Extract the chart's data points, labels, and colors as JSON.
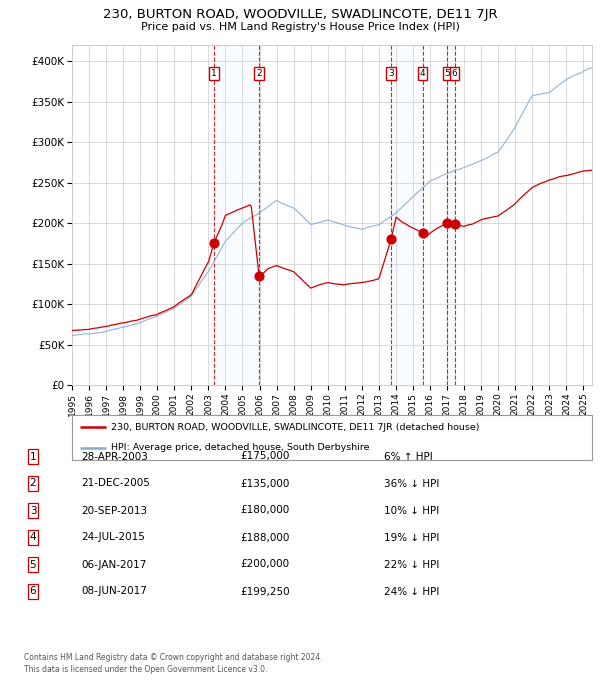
{
  "title": "230, BURTON ROAD, WOODVILLE, SWADLINCOTE, DE11 7JR",
  "subtitle": "Price paid vs. HM Land Registry's House Price Index (HPI)",
  "footer1": "Contains HM Land Registry data © Crown copyright and database right 2024.",
  "footer2": "This data is licensed under the Open Government Licence v3.0.",
  "legend_house": "230, BURTON ROAD, WOODVILLE, SWADLINCOTE, DE11 7JR (detached house)",
  "legend_hpi": "HPI: Average price, detached house, South Derbyshire",
  "transactions": [
    {
      "num": 1,
      "date": "28-APR-2003",
      "price": 175000,
      "pct": "6%",
      "dir": "↑",
      "year": 2003.32
    },
    {
      "num": 2,
      "date": "21-DEC-2005",
      "price": 135000,
      "pct": "36%",
      "dir": "↓",
      "year": 2005.97
    },
    {
      "num": 3,
      "date": "20-SEP-2013",
      "price": 180000,
      "pct": "10%",
      "dir": "↓",
      "year": 2013.72
    },
    {
      "num": 4,
      "date": "24-JUL-2015",
      "price": 188000,
      "pct": "19%",
      "dir": "↓",
      "year": 2015.56
    },
    {
      "num": 5,
      "date": "06-JAN-2017",
      "price": 200000,
      "pct": "22%",
      "dir": "↓",
      "year": 2017.02
    },
    {
      "num": 6,
      "date": "08-JUN-2017",
      "price": 199250,
      "pct": "24%",
      "dir": "↓",
      "year": 2017.44
    }
  ],
  "house_color": "#cc0000",
  "hpi_color": "#88aacc",
  "highlight_color": "#ddeeff",
  "grid_color": "#cccccc",
  "background_color": "#ffffff",
  "ylim": [
    0,
    420000
  ],
  "xlim_start": 1995.0,
  "xlim_end": 2025.5,
  "hpi_base": [
    [
      1995.0,
      60000
    ],
    [
      1996.0,
      63000
    ],
    [
      1997.0,
      67000
    ],
    [
      1998.0,
      72000
    ],
    [
      1999.0,
      77000
    ],
    [
      2000.0,
      85000
    ],
    [
      2001.0,
      95000
    ],
    [
      2002.0,
      110000
    ],
    [
      2003.0,
      140000
    ],
    [
      2004.0,
      178000
    ],
    [
      2005.0,
      200000
    ],
    [
      2006.0,
      212000
    ],
    [
      2007.0,
      228000
    ],
    [
      2008.0,
      218000
    ],
    [
      2009.0,
      198000
    ],
    [
      2010.0,
      204000
    ],
    [
      2011.0,
      197000
    ],
    [
      2012.0,
      193000
    ],
    [
      2013.0,
      198000
    ],
    [
      2014.0,
      212000
    ],
    [
      2015.0,
      232000
    ],
    [
      2016.0,
      252000
    ],
    [
      2017.0,
      262000
    ],
    [
      2018.0,
      268000
    ],
    [
      2019.0,
      277000
    ],
    [
      2020.0,
      288000
    ],
    [
      2021.0,
      318000
    ],
    [
      2022.0,
      358000
    ],
    [
      2023.0,
      362000
    ],
    [
      2024.0,
      378000
    ],
    [
      2025.5,
      392000
    ]
  ],
  "house_base": [
    [
      1995.0,
      67000
    ],
    [
      1996.0,
      69000
    ],
    [
      1997.0,
      73000
    ],
    [
      1998.0,
      77000
    ],
    [
      1999.0,
      81000
    ],
    [
      2000.0,
      87000
    ],
    [
      2001.0,
      97000
    ],
    [
      2002.0,
      112000
    ],
    [
      2003.0,
      152000
    ],
    [
      2003.32,
      175000
    ],
    [
      2003.8,
      198000
    ],
    [
      2004.0,
      210000
    ],
    [
      2005.0,
      218000
    ],
    [
      2005.5,
      222000
    ],
    [
      2005.97,
      135000
    ],
    [
      2006.2,
      138000
    ],
    [
      2006.5,
      144000
    ],
    [
      2007.0,
      148000
    ],
    [
      2008.0,
      140000
    ],
    [
      2009.0,
      120000
    ],
    [
      2010.0,
      127000
    ],
    [
      2011.0,
      124000
    ],
    [
      2012.0,
      127000
    ],
    [
      2013.0,
      131000
    ],
    [
      2013.72,
      180000
    ],
    [
      2014.0,
      207000
    ],
    [
      2014.5,
      200000
    ],
    [
      2015.0,
      194000
    ],
    [
      2015.56,
      188000
    ],
    [
      2015.8,
      184000
    ],
    [
      2016.0,
      188000
    ],
    [
      2016.5,
      195000
    ],
    [
      2017.02,
      200000
    ],
    [
      2017.44,
      199250
    ],
    [
      2017.6,
      197000
    ],
    [
      2018.0,
      196000
    ],
    [
      2018.5,
      199000
    ],
    [
      2019.0,
      204000
    ],
    [
      2020.0,
      209000
    ],
    [
      2021.0,
      224000
    ],
    [
      2022.0,
      244000
    ],
    [
      2023.0,
      254000
    ],
    [
      2024.0,
      259000
    ],
    [
      2025.0,
      264000
    ],
    [
      2025.5,
      265000
    ]
  ]
}
